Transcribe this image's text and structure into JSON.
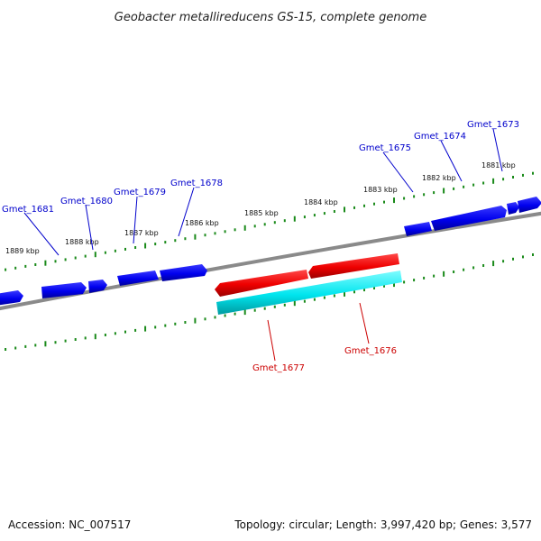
{
  "title": "Geobacter metallireducens GS-15, complete genome",
  "footer": {
    "accession": "Accession: NC_007517",
    "summary": "Topology: circular; Length: 3,997,420 bp; Genes: 3,577"
  },
  "ruler_labels": [
    "1881 kbp",
    "1882 kbp",
    "1883 kbp",
    "1884 kbp",
    "1885 kbp",
    "1886 kbp",
    "1887 kbp",
    "1888 kbp",
    "1889 kbp"
  ],
  "genes_forward": [
    "Gmet_1673",
    "Gmet_1674",
    "Gmet_1675",
    "Gmet_1678",
    "Gmet_1679",
    "Gmet_1680",
    "Gmet_1681"
  ],
  "genes_reverse": [
    "Gmet_1676",
    "Gmet_1677"
  ],
  "colors": {
    "backbone": "#808080",
    "forward_gene": "#0000ee",
    "reverse_gene": "#ee0000",
    "reverse_highlight": "#00e5ee",
    "tick": "#1a8a1a",
    "forward_label": "#0000cc",
    "reverse_label": "#cc0000"
  }
}
